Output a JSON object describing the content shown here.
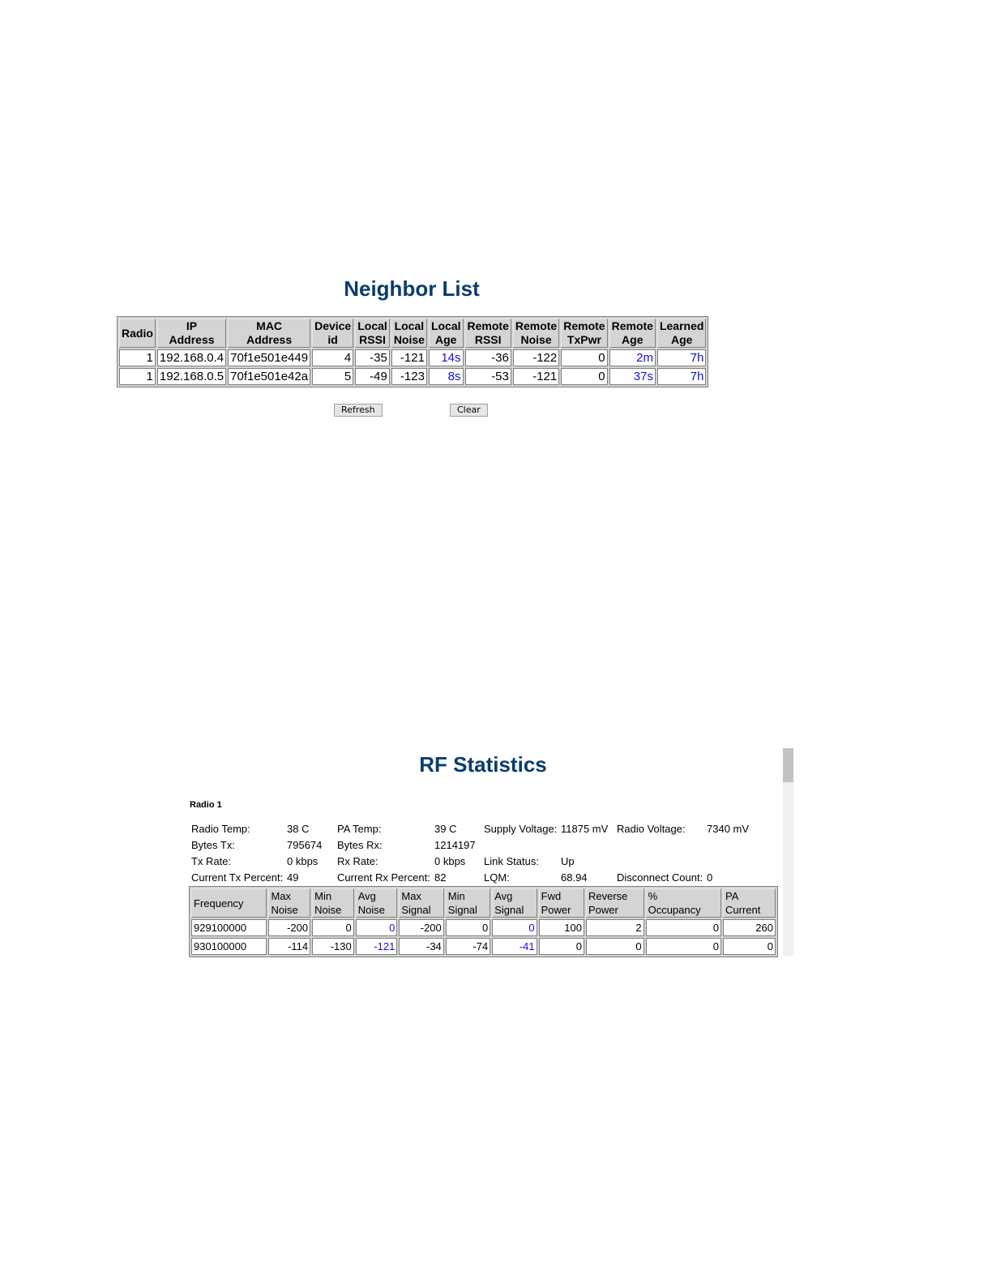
{
  "neighbor": {
    "title": "Neighbor List",
    "headers": [
      "Radio",
      "IP Address",
      "MAC Address",
      "Device id",
      "Local RSSI",
      "Local Noise",
      "Local Age",
      "Remote RSSI",
      "Remote Noise",
      "Remote TxPwr",
      "Remote Age",
      "Learned Age"
    ],
    "rows": [
      [
        "1",
        "192.168.0.4",
        "70f1e501e449",
        "4",
        "-35",
        "-121",
        "14s",
        "-36",
        "-122",
        "0",
        "2m",
        "7h"
      ],
      [
        "1",
        "192.168.0.5",
        "70f1e501e42a",
        "5",
        "-49",
        "-123",
        "8s",
        "-53",
        "-121",
        "0",
        "37s",
        "7h"
      ]
    ],
    "link_columns": [
      6,
      10,
      11
    ],
    "refresh_label": "Refresh",
    "clear_label": "Clear"
  },
  "rf": {
    "title": "RF Statistics",
    "radio_label": "Radio 1",
    "info": [
      [
        "Radio Temp:",
        "38 C",
        "PA Temp:",
        "39 C",
        "Supply Voltage:",
        "11875 mV",
        "Radio Voltage:",
        "7340 mV"
      ],
      [
        "Bytes Tx:",
        "795674",
        "Bytes Rx:",
        "1214197",
        "",
        "",
        "",
        ""
      ],
      [
        "Tx Rate:",
        "0 kbps",
        "Rx Rate:",
        "0 kbps",
        "Link Status:",
        "Up",
        "",
        ""
      ],
      [
        "Current Tx Percent:",
        "49",
        "Current Rx Percent:",
        "82",
        "LQM:",
        "68.94",
        "Disconnect Count:",
        "0"
      ]
    ],
    "headers": [
      "Frequency",
      "Max Noise",
      "Min Noise",
      "Avg Noise",
      "Max Signal",
      "Min Signal",
      "Avg Signal",
      "Fwd Power",
      "Reverse Power",
      "% Occupancy",
      "PA Current"
    ],
    "rows": [
      [
        "929100000",
        "-200",
        "0",
        "0",
        "-200",
        "0",
        "0",
        "100",
        "2",
        "0",
        "260"
      ],
      [
        "930100000",
        "-114",
        "-130",
        "-121",
        "-34",
        "-74",
        "-41",
        "0",
        "0",
        "0",
        "0"
      ]
    ],
    "highlight_columns": [
      3,
      6
    ]
  }
}
